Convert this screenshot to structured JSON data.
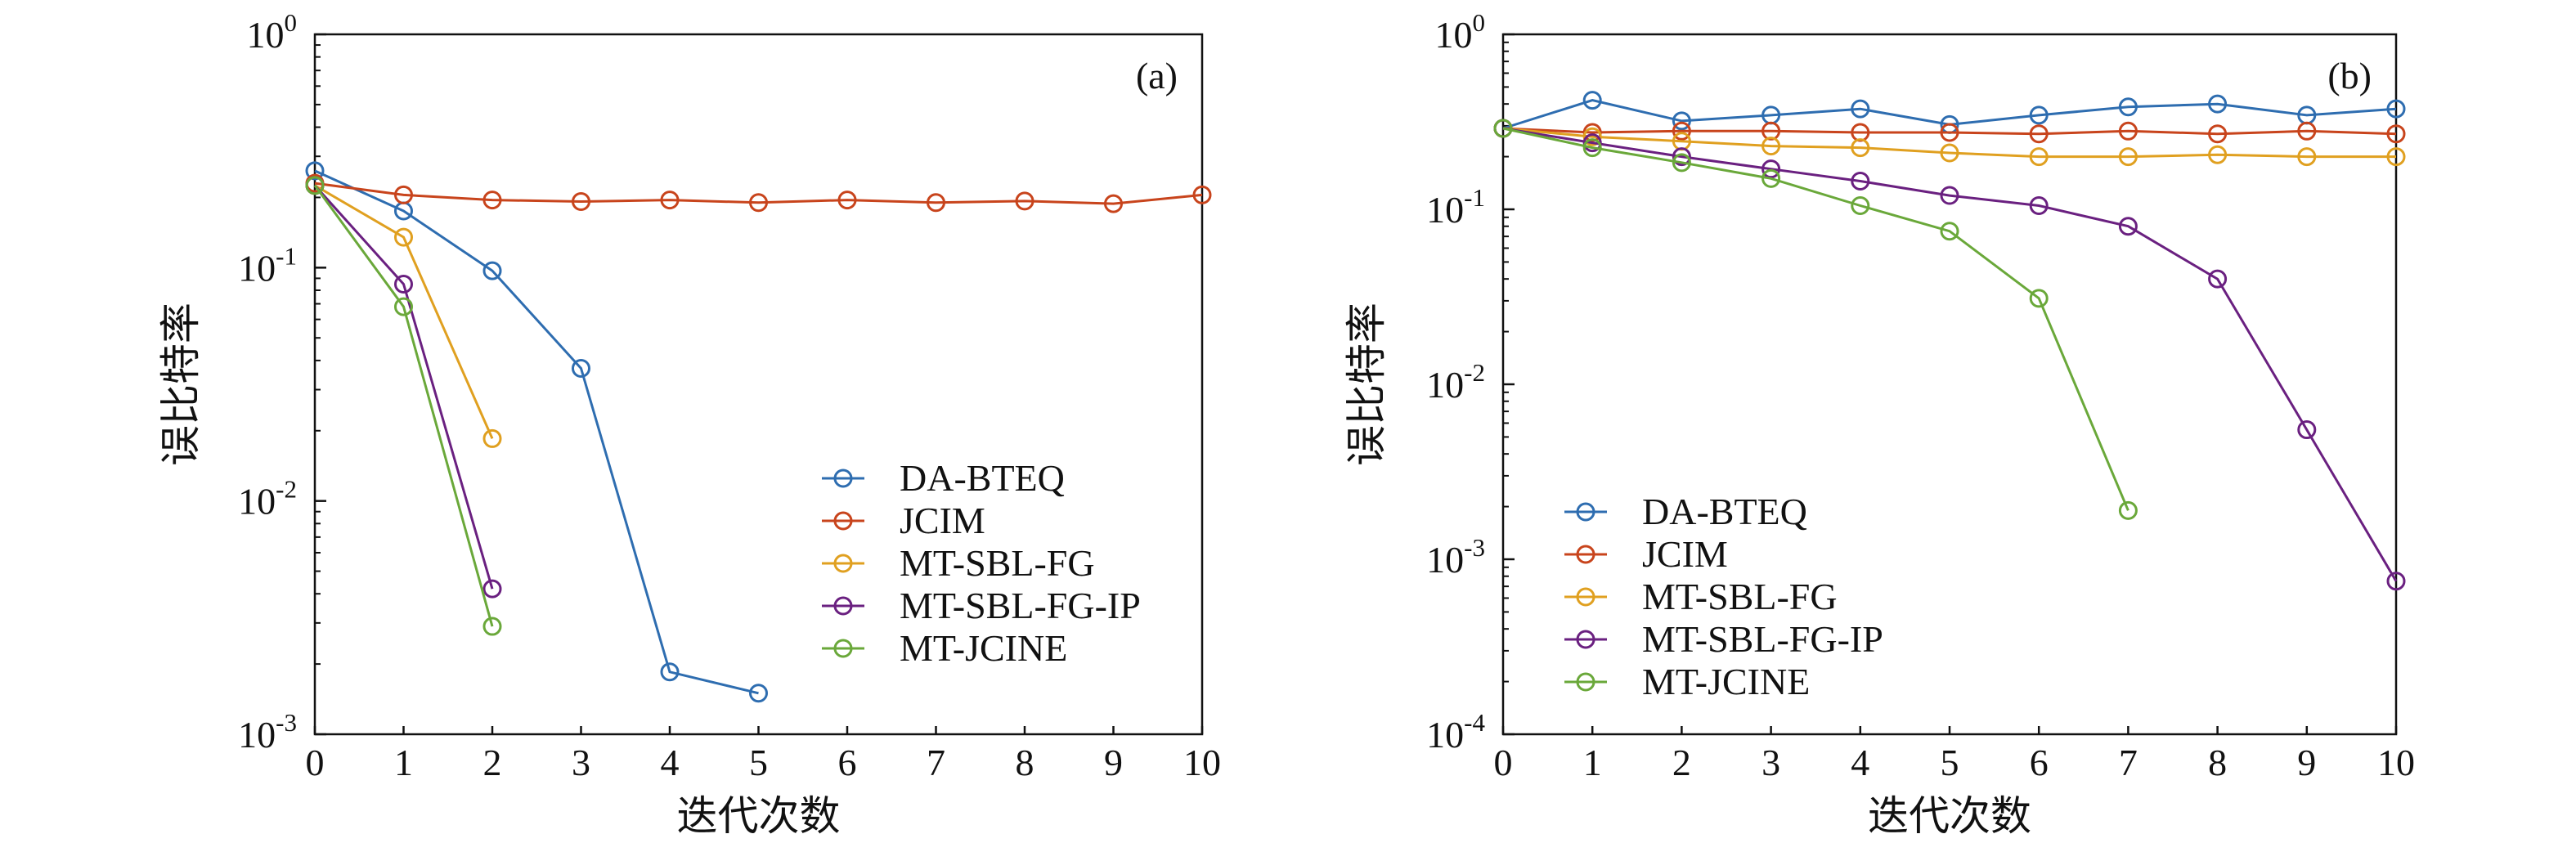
{
  "figure": {
    "panels": [
      "(a)",
      "(b)"
    ]
  },
  "chart_data": [
    {
      "type": "line",
      "panel_label": "(a)",
      "xlabel": "迭代次数",
      "ylabel": "误比特率",
      "y_scale": "log",
      "xlim": [
        0,
        10
      ],
      "ylim": [
        0.001,
        1
      ],
      "x_ticks": [
        "0",
        "1",
        "2",
        "3",
        "4",
        "5",
        "6",
        "7",
        "8",
        "9",
        "10"
      ],
      "y_ticks": [
        {
          "base": "10",
          "exp": "0"
        },
        {
          "base": "10",
          "exp": "-1"
        },
        {
          "base": "10",
          "exp": "-2"
        },
        {
          "base": "10",
          "exp": "-3"
        }
      ],
      "legend_position": "lower-right",
      "grid": false,
      "series": [
        {
          "name": "DA-BTEQ",
          "color": "#2e6db0",
          "x": [
            0,
            1,
            2,
            3,
            4,
            5
          ],
          "values": [
            0.26,
            0.175,
            0.097,
            0.037,
            0.00185,
            0.0015
          ]
        },
        {
          "name": "JCIM",
          "color": "#c8441c",
          "x": [
            0,
            1,
            2,
            3,
            4,
            5,
            6,
            7,
            8,
            9,
            10
          ],
          "values": [
            0.23,
            0.205,
            0.195,
            0.192,
            0.195,
            0.19,
            0.195,
            0.19,
            0.193,
            0.188,
            0.205
          ]
        },
        {
          "name": "MT-SBL-FG",
          "color": "#e0a020",
          "x": [
            0,
            1,
            2
          ],
          "values": [
            0.225,
            0.135,
            0.0185
          ]
        },
        {
          "name": "MT-SBL-FG-IP",
          "color": "#6a2080",
          "x": [
            0,
            1,
            2
          ],
          "values": [
            0.225,
            0.085,
            0.0042
          ]
        },
        {
          "name": "MT-JCINE",
          "color": "#6aa83a",
          "x": [
            0,
            1,
            2
          ],
          "values": [
            0.225,
            0.068,
            0.0029
          ]
        }
      ]
    },
    {
      "type": "line",
      "panel_label": "(b)",
      "xlabel": "迭代次数",
      "ylabel": "误比特率",
      "y_scale": "log",
      "xlim": [
        0,
        10
      ],
      "ylim": [
        0.0001,
        1
      ],
      "x_ticks": [
        "0",
        "1",
        "2",
        "3",
        "4",
        "5",
        "6",
        "7",
        "8",
        "9",
        "10"
      ],
      "y_ticks": [
        {
          "base": "10",
          "exp": "0"
        },
        {
          "base": "10",
          "exp": "-1"
        },
        {
          "base": "10",
          "exp": "-2"
        },
        {
          "base": "10",
          "exp": "-3"
        },
        {
          "base": "10",
          "exp": "-4"
        }
      ],
      "legend_position": "lower-left",
      "grid": false,
      "series": [
        {
          "name": "DA-BTEQ",
          "color": "#2e6db0",
          "x": [
            0,
            1,
            2,
            3,
            4,
            5,
            6,
            7,
            8,
            9,
            10
          ],
          "values": [
            0.29,
            0.42,
            0.32,
            0.345,
            0.375,
            0.305,
            0.345,
            0.385,
            0.4,
            0.345,
            0.375
          ]
        },
        {
          "name": "JCIM",
          "color": "#c8441c",
          "x": [
            0,
            1,
            2,
            3,
            4,
            5,
            6,
            7,
            8,
            9,
            10
          ],
          "values": [
            0.29,
            0.275,
            0.28,
            0.28,
            0.275,
            0.275,
            0.27,
            0.28,
            0.27,
            0.28,
            0.27
          ]
        },
        {
          "name": "MT-SBL-FG",
          "color": "#e0a020",
          "x": [
            0,
            1,
            2,
            3,
            4,
            5,
            6,
            7,
            8,
            9,
            10
          ],
          "values": [
            0.29,
            0.26,
            0.245,
            0.23,
            0.225,
            0.21,
            0.2,
            0.2,
            0.205,
            0.2,
            0.2
          ]
        },
        {
          "name": "MT-SBL-FG-IP",
          "color": "#6a2080",
          "x": [
            0,
            1,
            2,
            3,
            4,
            5,
            6,
            7,
            8,
            9,
            10
          ],
          "values": [
            0.29,
            0.24,
            0.2,
            0.17,
            0.145,
            0.12,
            0.105,
            0.08,
            0.04,
            0.0055,
            0.00075
          ]
        },
        {
          "name": "MT-JCINE",
          "color": "#6aa83a",
          "x": [
            0,
            1,
            2,
            3,
            4,
            5,
            6,
            7
          ],
          "values": [
            0.29,
            0.225,
            0.185,
            0.15,
            0.105,
            0.075,
            0.031,
            0.0019
          ]
        }
      ]
    }
  ]
}
